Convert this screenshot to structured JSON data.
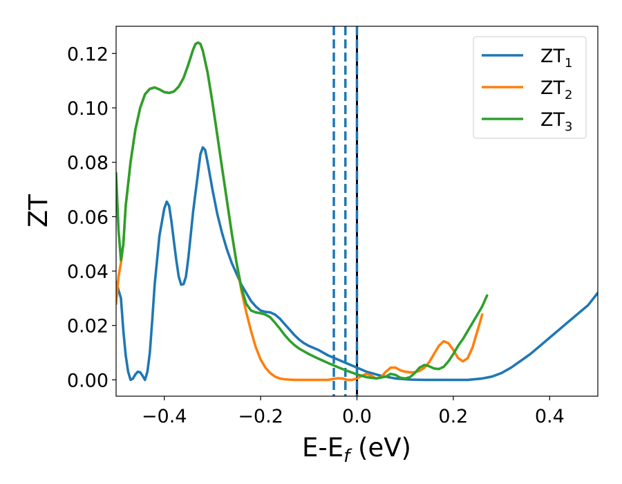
{
  "chart_data": {
    "type": "line",
    "title": "",
    "xlabel": "E-E",
    "xlabel_sub": "f",
    "xlabel_suffix": " (eV)",
    "ylabel": "ZT",
    "xlim": [
      -0.5,
      0.5
    ],
    "ylim": [
      -0.006,
      0.13
    ],
    "grid": false,
    "legend_position": "top-right",
    "x_ticks": [
      -0.4,
      -0.2,
      0.0,
      0.2,
      0.4
    ],
    "x_tick_labels": [
      "−0.4",
      "−0.2",
      "0.0",
      "0.2",
      "0.4"
    ],
    "y_ticks": [
      0.0,
      0.02,
      0.04,
      0.06,
      0.08,
      0.1,
      0.12
    ],
    "y_tick_labels": [
      "0.00",
      "0.02",
      "0.04",
      "0.06",
      "0.08",
      "0.10",
      "0.12"
    ],
    "vertical_lines": [
      {
        "x": -0.048,
        "style": "dashed",
        "color": "#1f77b4"
      },
      {
        "x": -0.024,
        "style": "dashed",
        "color": "#1f77b4"
      },
      {
        "x": 0.0,
        "style": "solid",
        "color": "#000000"
      },
      {
        "x": 0.0,
        "style": "dashed",
        "color": "#1f77b4"
      }
    ],
    "series": [
      {
        "name": "ZT",
        "name_sub": "1",
        "color": "#1f77b4",
        "points": [
          [
            -0.5,
            0.036
          ],
          [
            -0.49,
            0.03
          ],
          [
            -0.485,
            0.018
          ],
          [
            -0.48,
            0.009
          ],
          [
            -0.475,
            0.003
          ],
          [
            -0.47,
            0.0
          ],
          [
            -0.465,
            0.0005
          ],
          [
            -0.46,
            0.002
          ],
          [
            -0.455,
            0.003
          ],
          [
            -0.45,
            0.0028
          ],
          [
            -0.445,
            0.0015
          ],
          [
            -0.44,
            0.0
          ],
          [
            -0.435,
            0.003
          ],
          [
            -0.43,
            0.01
          ],
          [
            -0.425,
            0.022
          ],
          [
            -0.42,
            0.035
          ],
          [
            -0.41,
            0.053
          ],
          [
            -0.4,
            0.063
          ],
          [
            -0.395,
            0.0655
          ],
          [
            -0.39,
            0.064
          ],
          [
            -0.385,
            0.058
          ],
          [
            -0.38,
            0.051
          ],
          [
            -0.375,
            0.044
          ],
          [
            -0.37,
            0.038
          ],
          [
            -0.365,
            0.035
          ],
          [
            -0.36,
            0.0352
          ],
          [
            -0.355,
            0.038
          ],
          [
            -0.35,
            0.045
          ],
          [
            -0.34,
            0.062
          ],
          [
            -0.33,
            0.076
          ],
          [
            -0.325,
            0.083
          ],
          [
            -0.32,
            0.0855
          ],
          [
            -0.315,
            0.0845
          ],
          [
            -0.31,
            0.08
          ],
          [
            -0.3,
            0.07
          ],
          [
            -0.29,
            0.061
          ],
          [
            -0.28,
            0.054
          ],
          [
            -0.27,
            0.048
          ],
          [
            -0.26,
            0.043
          ],
          [
            -0.25,
            0.039
          ],
          [
            -0.24,
            0.035
          ],
          [
            -0.23,
            0.032
          ],
          [
            -0.22,
            0.029
          ],
          [
            -0.21,
            0.027
          ],
          [
            -0.2,
            0.0255
          ],
          [
            -0.19,
            0.025
          ],
          [
            -0.18,
            0.0248
          ],
          [
            -0.17,
            0.024
          ],
          [
            -0.16,
            0.0225
          ],
          [
            -0.15,
            0.0205
          ],
          [
            -0.14,
            0.0185
          ],
          [
            -0.13,
            0.0165
          ],
          [
            -0.12,
            0.0148
          ],
          [
            -0.11,
            0.0135
          ],
          [
            -0.1,
            0.0125
          ],
          [
            -0.08,
            0.011
          ],
          [
            -0.06,
            0.009
          ],
          [
            -0.04,
            0.0075
          ],
          [
            -0.02,
            0.006
          ],
          [
            0.0,
            0.0045
          ],
          [
            0.02,
            0.003
          ],
          [
            0.05,
            0.0015
          ],
          [
            0.08,
            0.0005
          ],
          [
            0.11,
            0.0001
          ],
          [
            0.14,
            0.0
          ],
          [
            0.17,
            0.0
          ],
          [
            0.2,
            0.0
          ],
          [
            0.23,
            0.0
          ],
          [
            0.26,
            0.0005
          ],
          [
            0.28,
            0.0012
          ],
          [
            0.3,
            0.0025
          ],
          [
            0.32,
            0.0045
          ],
          [
            0.34,
            0.007
          ],
          [
            0.36,
            0.0095
          ],
          [
            0.38,
            0.0125
          ],
          [
            0.4,
            0.0155
          ],
          [
            0.42,
            0.0185
          ],
          [
            0.44,
            0.0215
          ],
          [
            0.46,
            0.0245
          ],
          [
            0.48,
            0.0275
          ],
          [
            0.5,
            0.032
          ]
        ]
      },
      {
        "name": "ZT",
        "name_sub": "2",
        "color": "#ff7f0e",
        "points": [
          [
            -0.5,
            0.028
          ],
          [
            -0.495,
            0.038
          ],
          [
            -0.49,
            0.043
          ],
          [
            -0.485,
            0.05
          ],
          [
            -0.48,
            0.064
          ],
          [
            -0.47,
            0.08
          ],
          [
            -0.46,
            0.092
          ],
          [
            -0.45,
            0.1
          ],
          [
            -0.44,
            0.105
          ],
          [
            -0.43,
            0.107
          ],
          [
            -0.42,
            0.1075
          ],
          [
            -0.41,
            0.1068
          ],
          [
            -0.4,
            0.1058
          ],
          [
            -0.39,
            0.1055
          ],
          [
            -0.38,
            0.106
          ],
          [
            -0.37,
            0.1078
          ],
          [
            -0.36,
            0.111
          ],
          [
            -0.35,
            0.116
          ],
          [
            -0.34,
            0.1215
          ],
          [
            -0.335,
            0.1235
          ],
          [
            -0.33,
            0.124
          ],
          [
            -0.325,
            0.1235
          ],
          [
            -0.32,
            0.121
          ],
          [
            -0.31,
            0.113
          ],
          [
            -0.3,
            0.102
          ],
          [
            -0.29,
            0.09
          ],
          [
            -0.28,
            0.078
          ],
          [
            -0.27,
            0.066
          ],
          [
            -0.26,
            0.054
          ],
          [
            -0.25,
            0.043
          ],
          [
            -0.24,
            0.033
          ],
          [
            -0.23,
            0.025
          ],
          [
            -0.22,
            0.018
          ],
          [
            -0.21,
            0.012
          ],
          [
            -0.2,
            0.0075
          ],
          [
            -0.19,
            0.0045
          ],
          [
            -0.18,
            0.0025
          ],
          [
            -0.17,
            0.0012
          ],
          [
            -0.16,
            0.0005
          ],
          [
            -0.15,
            0.0002
          ],
          [
            -0.14,
            0.0001
          ],
          [
            -0.13,
            0.0
          ],
          [
            -0.12,
            0.0
          ],
          [
            -0.11,
            0.0
          ],
          [
            -0.1,
            0.0
          ],
          [
            -0.09,
            0.0
          ],
          [
            -0.08,
            0.0
          ],
          [
            -0.07,
            0.0
          ],
          [
            -0.06,
            0.0
          ],
          [
            -0.05,
            0.0003
          ],
          [
            -0.04,
            0.0006
          ],
          [
            -0.03,
            0.0005
          ],
          [
            -0.02,
            0.0
          ],
          [
            -0.01,
            0.0
          ],
          [
            0.0,
            0.0005
          ],
          [
            0.01,
            0.0015
          ],
          [
            0.02,
            0.0022
          ],
          [
            0.03,
            0.0015
          ],
          [
            0.04,
            0.0005
          ],
          [
            0.05,
            0.001
          ],
          [
            0.06,
            0.003
          ],
          [
            0.07,
            0.0045
          ],
          [
            0.08,
            0.0045
          ],
          [
            0.09,
            0.0035
          ],
          [
            0.1,
            0.003
          ],
          [
            0.11,
            0.0028
          ],
          [
            0.12,
            0.0028
          ],
          [
            0.13,
            0.0033
          ],
          [
            0.14,
            0.0045
          ],
          [
            0.15,
            0.0065
          ],
          [
            0.16,
            0.0095
          ],
          [
            0.17,
            0.0125
          ],
          [
            0.18,
            0.0142
          ],
          [
            0.19,
            0.0135
          ],
          [
            0.2,
            0.011
          ],
          [
            0.21,
            0.008
          ],
          [
            0.22,
            0.0068
          ],
          [
            0.23,
            0.008
          ],
          [
            0.24,
            0.012
          ],
          [
            0.25,
            0.018
          ],
          [
            0.26,
            0.024
          ]
        ]
      },
      {
        "name": "ZT",
        "name_sub": "3",
        "color": "#2ca02c",
        "points": [
          [
            -0.5,
            0.076
          ],
          [
            -0.495,
            0.055
          ],
          [
            -0.49,
            0.044
          ],
          [
            -0.485,
            0.05
          ],
          [
            -0.48,
            0.064
          ],
          [
            -0.47,
            0.08
          ],
          [
            -0.46,
            0.092
          ],
          [
            -0.45,
            0.1
          ],
          [
            -0.44,
            0.105
          ],
          [
            -0.43,
            0.107
          ],
          [
            -0.42,
            0.1075
          ],
          [
            -0.41,
            0.1068
          ],
          [
            -0.4,
            0.1058
          ],
          [
            -0.39,
            0.1055
          ],
          [
            -0.38,
            0.106
          ],
          [
            -0.37,
            0.1078
          ],
          [
            -0.36,
            0.111
          ],
          [
            -0.35,
            0.116
          ],
          [
            -0.34,
            0.1215
          ],
          [
            -0.335,
            0.1235
          ],
          [
            -0.33,
            0.124
          ],
          [
            -0.325,
            0.1235
          ],
          [
            -0.32,
            0.121
          ],
          [
            -0.31,
            0.113
          ],
          [
            -0.3,
            0.102
          ],
          [
            -0.29,
            0.09
          ],
          [
            -0.28,
            0.078
          ],
          [
            -0.27,
            0.066
          ],
          [
            -0.26,
            0.054
          ],
          [
            -0.25,
            0.043
          ],
          [
            -0.24,
            0.034
          ],
          [
            -0.23,
            0.028
          ],
          [
            -0.22,
            0.0255
          ],
          [
            -0.21,
            0.0248
          ],
          [
            -0.2,
            0.0245
          ],
          [
            -0.19,
            0.024
          ],
          [
            -0.18,
            0.023
          ],
          [
            -0.17,
            0.021
          ],
          [
            -0.16,
            0.0188
          ],
          [
            -0.15,
            0.0165
          ],
          [
            -0.14,
            0.0145
          ],
          [
            -0.13,
            0.0128
          ],
          [
            -0.12,
            0.0115
          ],
          [
            -0.1,
            0.0095
          ],
          [
            -0.08,
            0.0078
          ],
          [
            -0.06,
            0.0062
          ],
          [
            -0.04,
            0.0047
          ],
          [
            -0.02,
            0.0033
          ],
          [
            0.0,
            0.002
          ],
          [
            0.02,
            0.001
          ],
          [
            0.04,
            0.0005
          ],
          [
            0.06,
            0.0012
          ],
          [
            0.07,
            0.0022
          ],
          [
            0.08,
            0.0018
          ],
          [
            0.09,
            0.0008
          ],
          [
            0.1,
            0.0005
          ],
          [
            0.11,
            0.001
          ],
          [
            0.12,
            0.0025
          ],
          [
            0.13,
            0.0045
          ],
          [
            0.14,
            0.0055
          ],
          [
            0.15,
            0.005
          ],
          [
            0.16,
            0.0042
          ],
          [
            0.17,
            0.004
          ],
          [
            0.18,
            0.0048
          ],
          [
            0.19,
            0.0068
          ],
          [
            0.2,
            0.0095
          ],
          [
            0.21,
            0.0125
          ],
          [
            0.22,
            0.015
          ],
          [
            0.23,
            0.018
          ],
          [
            0.24,
            0.021
          ],
          [
            0.25,
            0.024
          ],
          [
            0.26,
            0.027
          ],
          [
            0.27,
            0.031
          ]
        ]
      }
    ]
  }
}
